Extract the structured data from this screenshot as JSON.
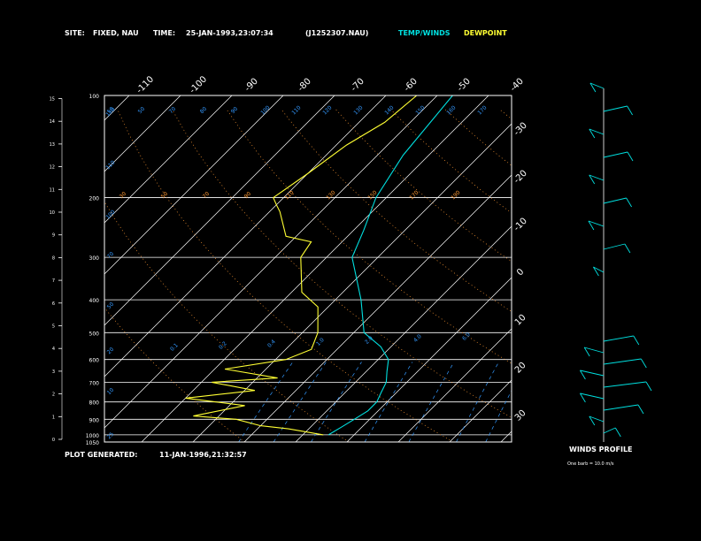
{
  "header": {
    "site_label": "SITE:",
    "site_value": "FIXED, NAU",
    "time_label": "TIME:",
    "time_value": "25-JAN-1993,23:07:34",
    "file_id": "(J1252307.NAU)",
    "legend_temp": "TEMP/WINDS",
    "legend_dew": "DEWPOINT"
  },
  "footer": {
    "generated_label": "PLOT GENERATED:",
    "generated_value": "11-JAN-1996,21:32:57",
    "winds_title": "WINDS PROFILE",
    "winds_scale": "One barb = 10.0 m/s"
  },
  "colors": {
    "temp": "#00e0e0",
    "dewpoint": "#ffff33",
    "mixing_label": "#3399ff",
    "dry_adiabat_label": "#ff9933",
    "grid": "#ffffff"
  },
  "chart_data": {
    "type": "line",
    "title": "",
    "xlabel": "",
    "ylabel": "",
    "temperature_ticks_top": [
      -110,
      -100,
      -90,
      -80,
      -70,
      -60,
      -50,
      -40
    ],
    "temperature_ticks_right": [
      -30,
      -20,
      -10,
      0,
      10,
      20,
      30
    ],
    "pressure_ticks": [
      100,
      200,
      300,
      400,
      500,
      600,
      700,
      800,
      900,
      1000,
      1050
    ],
    "height_ticks_km": [
      0,
      1,
      2,
      3,
      4,
      5,
      6,
      7,
      8,
      9,
      10,
      11,
      12,
      13,
      14,
      15
    ],
    "mixing_ratio_labels": [
      "0.1",
      "0.2",
      "0.4",
      "1.0",
      "2.0",
      "4.0",
      "6.0"
    ],
    "dry_adiabat_labels_top": [
      "50",
      "50",
      "70",
      "80",
      "90",
      "100",
      "110",
      "120",
      "130",
      "140",
      "150",
      "160",
      "170"
    ],
    "dry_adiabat_labels_left": [
      "150",
      "110",
      "100",
      "70",
      "50",
      "20",
      "10",
      "25"
    ],
    "dry_adiabat_labels_200": [
      "30",
      "50",
      "70",
      "90",
      "110",
      "130",
      "150",
      "170",
      "190"
    ],
    "xlim": [
      -40,
      40
    ],
    "ylim": [
      1050,
      100
    ],
    "series": [
      {
        "name": "TEMP/WINDS",
        "x": [
          -25,
          -24,
          -23,
          -22,
          -22,
          -23,
          -24,
          -26,
          -28,
          -32,
          -38,
          -45,
          -55,
          -58,
          -62,
          -65,
          -67
        ],
        "y": [
          1000,
          950,
          900,
          850,
          800,
          750,
          700,
          650,
          600,
          550,
          500,
          400,
          300,
          250,
          200,
          150,
          100
        ]
      },
      {
        "name": "DEWPOINT",
        "x": [
          -26,
          -34,
          -40,
          -46,
          -55,
          -47,
          -60,
          -48,
          -58,
          -46,
          -58,
          -48,
          -45,
          -47,
          -52,
          -58,
          -65,
          -66,
          -72,
          -78,
          -80,
          -82,
          -80,
          -78,
          -75,
          -74
        ],
        "y": [
          1000,
          960,
          940,
          900,
          880,
          820,
          780,
          740,
          700,
          680,
          640,
          600,
          560,
          500,
          420,
          380,
          300,
          270,
          260,
          220,
          210,
          200,
          170,
          140,
          120,
          100
        ]
      }
    ],
    "wind_profile": [
      {
        "h": 0,
        "dir": 340,
        "spd": 35
      },
      {
        "h": 0.5,
        "dir": 320,
        "spd": 40
      },
      {
        "h": 1,
        "dir": 300,
        "spd": 45
      },
      {
        "h": 1.5,
        "dir": 280,
        "spd": 45
      },
      {
        "h": 2,
        "dir": 270,
        "spd": 50
      },
      {
        "h": 2.5,
        "dir": 260,
        "spd": 45
      },
      {
        "h": 3,
        "dir": 250,
        "spd": 45
      },
      {
        "h": 3.5,
        "dir": 240,
        "spd": 40
      },
      {
        "h": 4,
        "dir": 250,
        "spd": 30
      },
      {
        "h": 7,
        "dir": 220,
        "spd": 20
      },
      {
        "h": 8,
        "dir": 230,
        "spd": 22
      },
      {
        "h": 9,
        "dir": 240,
        "spd": 25
      },
      {
        "h": 10,
        "dir": 235,
        "spd": 22
      },
      {
        "h": 11,
        "dir": 245,
        "spd": 20
      },
      {
        "h": 12,
        "dir": 240,
        "spd": 22
      },
      {
        "h": 13,
        "dir": 250,
        "spd": 18
      },
      {
        "h": 14,
        "dir": 260,
        "spd": 15
      },
      {
        "h": 15,
        "dir": 270,
        "spd": 12
      }
    ]
  }
}
